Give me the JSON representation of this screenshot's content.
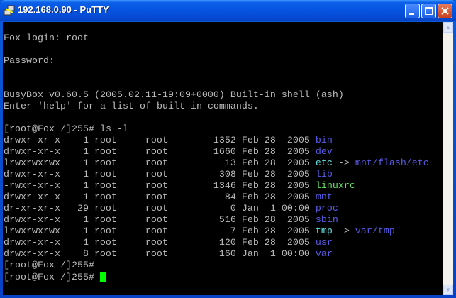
{
  "window": {
    "title": "192.168.0.90 - PuTTY"
  },
  "colors": {
    "directory": "#5a5ae8",
    "symlink": "#5fe0e0",
    "executable": "#5fe05f",
    "cursor": "#00ff00"
  },
  "terminal": {
    "pre_lines": [
      "",
      "Fox login: root",
      "",
      "Password:",
      "",
      "",
      "BusyBox v0.60.5 (2005.02.11-19:09+0000) Built-in shell (ash)",
      "Enter 'help' for a list of built-in commands.",
      "",
      "[root@Fox /]255# ls -l"
    ],
    "entries": [
      {
        "perms": "drwxr-xr-x",
        "links": "1",
        "owner": "root",
        "group": "root",
        "size": "1352",
        "date": "Feb 28  2005",
        "name": "bin",
        "type": "dir"
      },
      {
        "perms": "drwxr-xr-x",
        "links": "1",
        "owner": "root",
        "group": "root",
        "size": "1660",
        "date": "Feb 28  2005",
        "name": "dev",
        "type": "dir"
      },
      {
        "perms": "lrwxrwxrwx",
        "links": "1",
        "owner": "root",
        "group": "root",
        "size": "13",
        "date": "Feb 28  2005",
        "name": "etc",
        "type": "link",
        "target": "mnt/flash/etc"
      },
      {
        "perms": "drwxr-xr-x",
        "links": "1",
        "owner": "root",
        "group": "root",
        "size": "308",
        "date": "Feb 28  2005",
        "name": "lib",
        "type": "dir"
      },
      {
        "perms": "-rwxr-xr-x",
        "links": "1",
        "owner": "root",
        "group": "root",
        "size": "1346",
        "date": "Feb 28  2005",
        "name": "linuxrc",
        "type": "exec"
      },
      {
        "perms": "drwxr-xr-x",
        "links": "1",
        "owner": "root",
        "group": "root",
        "size": "84",
        "date": "Feb 28  2005",
        "name": "mnt",
        "type": "dir"
      },
      {
        "perms": "dr-xr-xr-x",
        "links": "29",
        "owner": "root",
        "group": "root",
        "size": "0",
        "date": "Jan  1 00:00",
        "name": "proc",
        "type": "dir"
      },
      {
        "perms": "drwxr-xr-x",
        "links": "1",
        "owner": "root",
        "group": "root",
        "size": "516",
        "date": "Feb 28  2005",
        "name": "sbin",
        "type": "dir"
      },
      {
        "perms": "lrwxrwxrwx",
        "links": "1",
        "owner": "root",
        "group": "root",
        "size": "7",
        "date": "Feb 28  2005",
        "name": "tmp",
        "type": "link",
        "target": "var/tmp"
      },
      {
        "perms": "drwxr-xr-x",
        "links": "1",
        "owner": "root",
        "group": "root",
        "size": "120",
        "date": "Feb 28  2005",
        "name": "usr",
        "type": "dir"
      },
      {
        "perms": "drwxr-xr-x",
        "links": "8",
        "owner": "root",
        "group": "root",
        "size": "160",
        "date": "Jan  1 00:00",
        "name": "var",
        "type": "dir"
      }
    ],
    "post_lines": [
      "[root@Fox /]255#",
      "[root@Fox /]255# "
    ],
    "link_arrow": " -> "
  }
}
